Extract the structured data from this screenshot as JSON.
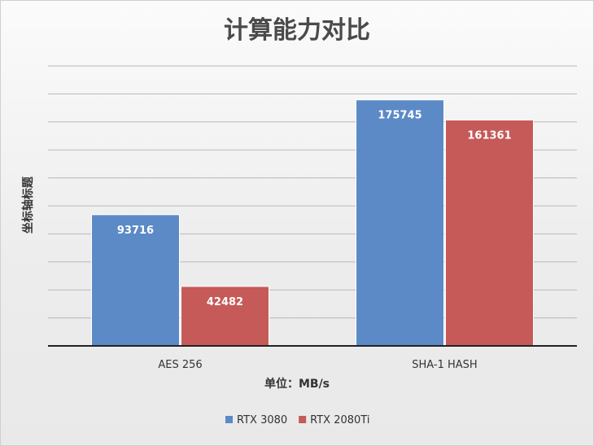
{
  "chart_data": {
    "type": "bar",
    "title": "计算能力对比",
    "xlabel": "单位：MB/s",
    "ylabel": "坐标轴标题",
    "categories": [
      "AES 256",
      "SHA-1 HASH"
    ],
    "series": [
      {
        "name": "RTX 3080",
        "values": [
          93716,
          175745
        ],
        "color": "#5b8ac6"
      },
      {
        "name": "RTX 2080Ti",
        "values": [
          42482,
          161361
        ],
        "color": "#c55a58"
      }
    ],
    "ylim": [
      0,
      200000
    ],
    "gridline_step": 20000,
    "grid": true,
    "y_tick_labels_shown": false,
    "data_labels": true,
    "legend_position": "bottom"
  }
}
